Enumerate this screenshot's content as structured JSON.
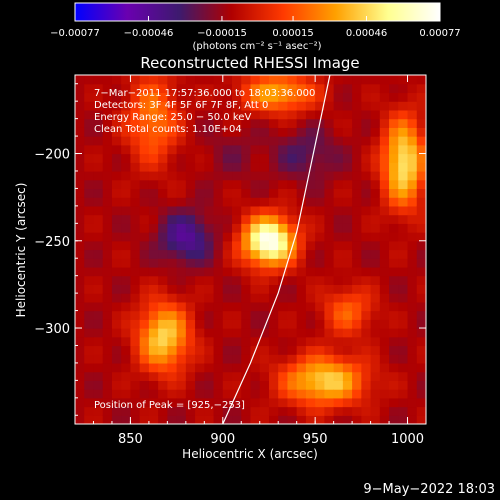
{
  "chart_data": {
    "type": "heatmap",
    "title": "Reconstructed RHESSI Image",
    "xlabel": "Heliocentric X (arcsec)",
    "ylabel": "Heliocentric Y (arcsec)",
    "xlim": [
      820,
      1010
    ],
    "ylim": [
      -355,
      -155
    ],
    "x_ticks": [
      850,
      900,
      950,
      1000
    ],
    "x_tick_labels": [
      "850",
      "900",
      "950",
      "1000"
    ],
    "y_ticks": [
      -200,
      -250,
      -300
    ],
    "y_tick_labels": [
      "−200",
      "−250",
      "−300"
    ],
    "colorbar": {
      "range": [
        -0.00077,
        0.00077
      ],
      "tick_values": [
        -0.00077,
        -0.00046,
        -0.00015,
        0.00015,
        0.00046,
        0.00077
      ],
      "tick_labels": [
        "−0.00077",
        "−0.00046",
        "−0.00015",
        "0.00015",
        "0.00046",
        "0.00077"
      ],
      "units": "(photons cm⁻² s⁻¹ asec⁻²)",
      "colors": [
        "#0000ff",
        "#6a00b0",
        "#3d1a6e",
        "#b00000",
        "#ff3a00",
        "#ffa000",
        "#ffff90",
        "#ffffff"
      ]
    },
    "annotations": [
      "7−Mar−2011 17:57:36.000 to 18:03:36.000",
      "Detectors: 3F 4F 5F 6F 7F 8F, Att 0",
      "Energy Range: 25.0 − 50.0 keV",
      "Clean     Total counts: 1.10E+04"
    ],
    "peak_label": "Position of Peak = [925,−253]",
    "peak": [
      925,
      -253
    ],
    "limb_curve": [
      [
        900,
        -355
      ],
      [
        915,
        -320
      ],
      [
        930,
        -280
      ],
      [
        940,
        -245
      ],
      [
        948,
        -205
      ],
      [
        955,
        -170
      ],
      [
        958,
        -155
      ]
    ],
    "sources": [
      {
        "x": 925,
        "y": -250,
        "value": 0.00077,
        "sx": 10,
        "sy": 10
      },
      {
        "x": 998,
        "y": -205,
        "value": 0.00052,
        "sx": 8,
        "sy": 18
      },
      {
        "x": 955,
        "y": -330,
        "value": 0.00046,
        "sx": 16,
        "sy": 10
      },
      {
        "x": 868,
        "y": -305,
        "value": 0.00046,
        "sx": 10,
        "sy": 14
      },
      {
        "x": 930,
        "y": -165,
        "value": 0.00035,
        "sx": 14,
        "sy": 8
      },
      {
        "x": 862,
        "y": -180,
        "value": 0.00025,
        "sx": 10,
        "sy": 18
      },
      {
        "x": 968,
        "y": -290,
        "value": 0.00018,
        "sx": 10,
        "sy": 10
      },
      {
        "x": 880,
        "y": -248,
        "value": -0.00046,
        "sx": 10,
        "sy": 10
      },
      {
        "x": 945,
        "y": -200,
        "value": -0.0003,
        "sx": 12,
        "sy": 10
      },
      {
        "x": 905,
        "y": -200,
        "value": -0.0002,
        "sx": 10,
        "sy": 10
      }
    ]
  },
  "footer_timestamp": "9−May−2022 18:03"
}
